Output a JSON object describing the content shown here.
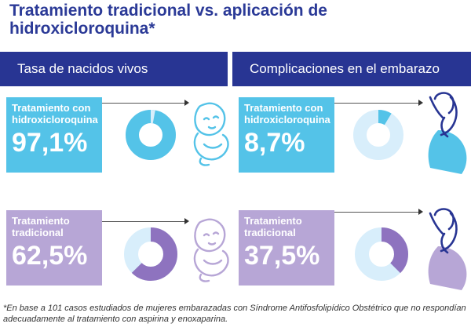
{
  "title": "Tratamiento tradicional vs. aplicación de hidroxicloroquina*",
  "headers": {
    "left": "Tasa de nacidos vivos",
    "right": "Complicaciones en el embarazo"
  },
  "cards": {
    "tl": {
      "label": "Tratamiento con hidroxicloroquina",
      "value": "97,1%"
    },
    "tr": {
      "label": "Tratamiento con hidroxicloroquina",
      "value": "8,7%"
    },
    "bl": {
      "label": "Tratamiento tradicional",
      "value": "62,5%"
    },
    "br": {
      "label": "Tratamiento tradicional",
      "value": "37,5%"
    }
  },
  "footnote": "*En base a 101 casos estudiados de mujeres embarazadas con Síndrome Antifosfolipídico Obstétrico que no respondían adecuadamente al tratamiento con aspirina y enoxaparina.",
  "colors": {
    "navy": "#283593",
    "blue": "#54c3e8",
    "light_blue": "#d8eefb",
    "purple": "#8e73bf",
    "light_purple": "#b7a6d6"
  },
  "chart_data": [
    {
      "type": "pie",
      "categories": [
        "Tratamiento con hidroxicloroquina"
      ],
      "values": [
        97.1
      ],
      "title": "Tasa de nacidos vivos"
    },
    {
      "type": "pie",
      "categories": [
        "Tratamiento con hidroxicloroquina"
      ],
      "values": [
        8.7
      ],
      "title": "Complicaciones en el embarazo"
    },
    {
      "type": "pie",
      "categories": [
        "Tratamiento tradicional"
      ],
      "values": [
        62.5
      ],
      "title": "Tasa de nacidos vivos"
    },
    {
      "type": "pie",
      "categories": [
        "Tratamiento tradicional"
      ],
      "values": [
        37.5
      ],
      "title": "Complicaciones en el embarazo"
    }
  ]
}
